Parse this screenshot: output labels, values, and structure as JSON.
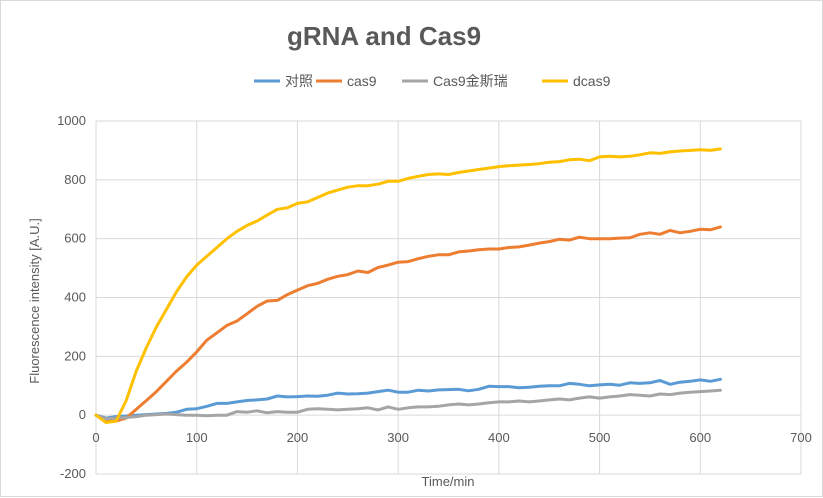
{
  "chart_data": {
    "type": "line",
    "title": "gRNA and Cas9",
    "xlabel": "Time/min",
    "ylabel": "Fluorescence intensity [A.U.]",
    "xlim": [
      0,
      700
    ],
    "ylim": [
      -200,
      1000
    ],
    "x_ticks": [
      0,
      100,
      200,
      300,
      400,
      500,
      600,
      700
    ],
    "y_ticks": [
      -200,
      0,
      200,
      400,
      600,
      800,
      1000
    ],
    "grid": true,
    "legend_position": "top",
    "x": [
      0,
      10,
      20,
      30,
      40,
      50,
      60,
      70,
      80,
      90,
      100,
      110,
      120,
      130,
      140,
      150,
      160,
      170,
      180,
      190,
      200,
      210,
      220,
      230,
      240,
      250,
      260,
      270,
      280,
      290,
      300,
      310,
      320,
      330,
      340,
      350,
      360,
      370,
      380,
      390,
      400,
      410,
      420,
      430,
      440,
      450,
      460,
      470,
      480,
      490,
      500,
      510,
      520,
      530,
      540,
      550,
      560,
      570,
      580,
      590,
      600,
      610,
      620
    ],
    "series": [
      {
        "name": "对照",
        "color": "#5b9bd5",
        "values": [
          0,
          -10,
          -5,
          -3,
          0,
          2,
          4,
          6,
          10,
          20,
          22,
          30,
          40,
          40,
          45,
          50,
          52,
          55,
          65,
          62,
          63,
          65,
          64,
          68,
          75,
          72,
          73,
          75,
          80,
          85,
          78,
          78,
          85,
          82,
          86,
          87,
          88,
          83,
          88,
          98,
          97,
          97,
          93,
          95,
          98,
          100,
          100,
          108,
          105,
          100,
          103,
          105,
          102,
          110,
          108,
          110,
          118,
          105,
          112,
          115,
          120,
          115,
          122
        ]
      },
      {
        "name": "cas9",
        "color": "#ed7d31",
        "values": [
          0,
          -18,
          -20,
          -10,
          20,
          50,
          80,
          115,
          150,
          180,
          215,
          255,
          280,
          305,
          320,
          345,
          370,
          388,
          390,
          410,
          425,
          440,
          448,
          462,
          472,
          478,
          490,
          485,
          502,
          510,
          520,
          522,
          532,
          540,
          545,
          545,
          555,
          558,
          562,
          565,
          565,
          570,
          572,
          578,
          585,
          590,
          598,
          595,
          605,
          600,
          600,
          600,
          602,
          603,
          615,
          620,
          615,
          628,
          620,
          625,
          632,
          630,
          640
        ]
      },
      {
        "name": "Cas9金斯瑞",
        "color": "#a5a5a5",
        "values": [
          0,
          -12,
          -10,
          -8,
          -5,
          0,
          2,
          4,
          2,
          0,
          0,
          -2,
          0,
          0,
          12,
          10,
          15,
          8,
          12,
          10,
          10,
          20,
          22,
          20,
          18,
          20,
          22,
          25,
          18,
          28,
          20,
          25,
          28,
          28,
          30,
          35,
          38,
          35,
          38,
          42,
          45,
          45,
          48,
          45,
          48,
          52,
          55,
          52,
          58,
          62,
          58,
          62,
          65,
          70,
          68,
          65,
          72,
          70,
          75,
          78,
          80,
          82,
          85
        ]
      },
      {
        "name": "dcas9",
        "color": "#ffc000",
        "values": [
          0,
          -25,
          -20,
          50,
          150,
          230,
          300,
          360,
          420,
          470,
          510,
          540,
          570,
          600,
          625,
          645,
          660,
          680,
          700,
          705,
          720,
          725,
          740,
          755,
          765,
          775,
          780,
          780,
          785,
          795,
          795,
          805,
          812,
          818,
          820,
          818,
          825,
          830,
          835,
          840,
          845,
          848,
          850,
          852,
          855,
          860,
          862,
          868,
          870,
          865,
          878,
          880,
          878,
          880,
          885,
          892,
          890,
          895,
          898,
          900,
          902,
          900,
          905
        ]
      }
    ]
  }
}
